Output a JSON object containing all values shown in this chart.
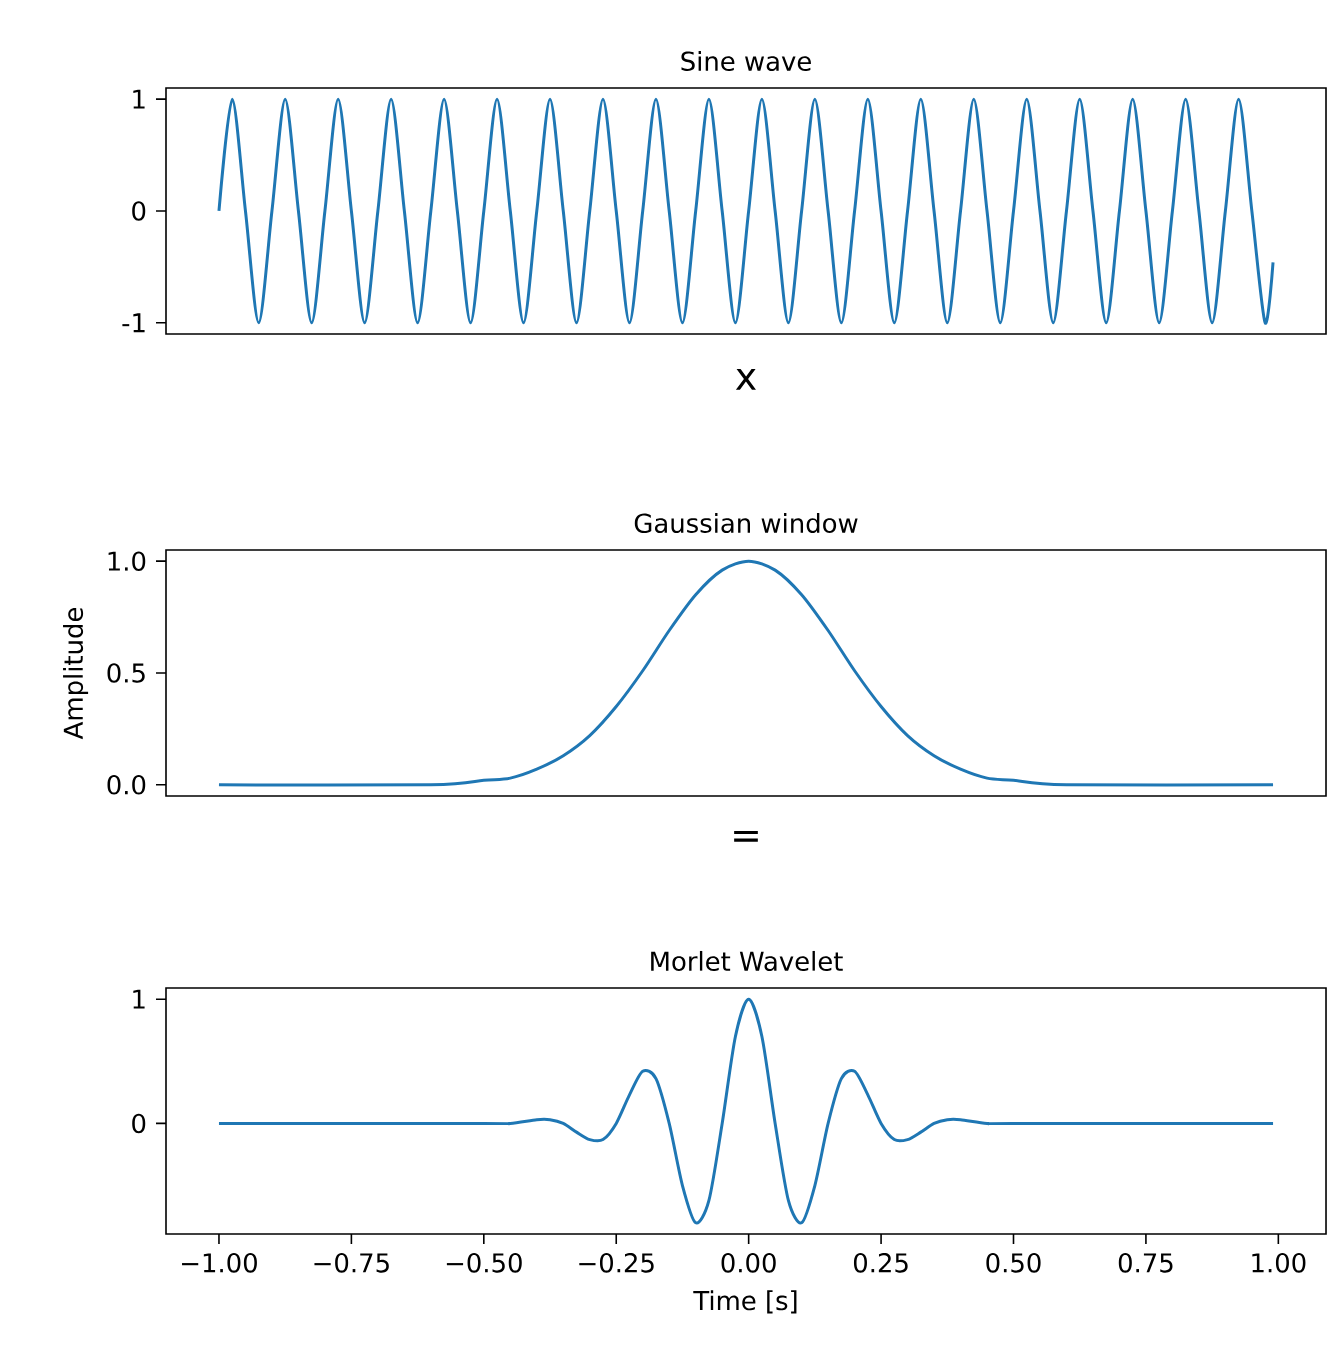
{
  "chart_data": [
    {
      "type": "line",
      "title": "Sine wave",
      "xlabel": "x",
      "tick_labels": "y",
      "xlim": [
        -1.1,
        1.09
      ],
      "ylim": [
        -1.1,
        1.1
      ],
      "yticks": [
        -1,
        0,
        1
      ],
      "series": [
        {
          "color": "#1f77b4",
          "x": [
            -1,
            -0.975,
            -0.95,
            -0.925,
            -0.9,
            -0.875,
            -0.85,
            -0.825,
            -0.8,
            -0.775,
            -0.75,
            -0.725,
            -0.7,
            -0.675,
            -0.65,
            -0.625,
            -0.6,
            -0.575,
            -0.55,
            -0.525,
            -0.5,
            -0.475,
            -0.45,
            -0.425,
            -0.4,
            -0.375,
            -0.35,
            -0.325,
            -0.3,
            -0.275,
            -0.25,
            -0.225,
            -0.2,
            -0.175,
            -0.15,
            -0.125,
            -0.1,
            -0.075,
            -0.05,
            -0.025,
            0,
            0.025,
            0.05,
            0.075,
            0.1,
            0.125,
            0.15,
            0.175,
            0.2,
            0.225,
            0.25,
            0.275,
            0.3,
            0.325,
            0.35,
            0.375,
            0.4,
            0.425,
            0.45,
            0.475,
            0.5,
            0.525,
            0.55,
            0.575,
            0.6,
            0.625,
            0.65,
            0.675,
            0.7,
            0.725,
            0.75,
            0.775,
            0.8,
            0.825,
            0.85,
            0.875,
            0.9,
            0.925,
            0.95,
            0.975,
            0.99
          ],
          "values": [
            0,
            1,
            0,
            -1,
            0,
            1,
            0,
            -1,
            0,
            1,
            0,
            -1,
            0,
            1,
            0,
            -1,
            0,
            1,
            0,
            -1,
            0,
            1,
            0,
            -1,
            0,
            1,
            0,
            -1,
            0,
            1,
            0,
            -1,
            0,
            1,
            0,
            -1,
            0,
            1,
            0,
            -1,
            0,
            1,
            0,
            -1,
            0,
            1,
            0,
            -1,
            0,
            1,
            0,
            -1,
            0,
            1,
            0,
            -1,
            0,
            1,
            0,
            -1,
            0,
            1,
            0,
            -1,
            0,
            1,
            0,
            -1,
            0,
            1,
            0,
            -1,
            0,
            1,
            0,
            -1,
            0,
            1,
            0,
            -1,
            -0.46
          ]
        }
      ]
    },
    {
      "type": "line",
      "title": "Gaussian window",
      "xlabel": "=",
      "ylabel": "Amplitude",
      "tick_labels": "y",
      "xlim": [
        -1.1,
        1.09
      ],
      "ylim": [
        -0.05,
        1.05
      ],
      "yticks": [
        {
          "value": 0,
          "label": "0.0"
        },
        {
          "value": 0.5,
          "label": "0.5"
        },
        {
          "value": 1,
          "label": "1.0"
        }
      ],
      "series": [
        {
          "color": "#1f77b4",
          "x": [
            -1,
            -0.6,
            -0.5,
            -0.45,
            -0.4,
            -0.35,
            -0.3,
            -0.25,
            -0.2,
            -0.15,
            -0.1,
            -0.05,
            0,
            0.05,
            0.1,
            0.15,
            0.2,
            0.25,
            0.3,
            0.35,
            0.4,
            0.45,
            0.5,
            0.6,
            0.99
          ],
          "values": [
            0,
            0,
            0.02,
            0.03,
            0.07,
            0.13,
            0.22,
            0.35,
            0.51,
            0.69,
            0.85,
            0.96,
            1,
            0.96,
            0.85,
            0.69,
            0.51,
            0.35,
            0.22,
            0.13,
            0.07,
            0.03,
            0.02,
            0,
            0
          ]
        }
      ]
    },
    {
      "type": "line",
      "title": "Morlet Wavelet",
      "xlabel": "Time [s]",
      "xlim": [
        -1.1,
        1.09
      ],
      "ylim": [
        -0.89,
        1.09
      ],
      "yticks": [
        0,
        1
      ],
      "xticks": [
        {
          "value": -1,
          "label": "−1.00"
        },
        {
          "value": -0.75,
          "label": "−0.75"
        },
        {
          "value": -0.5,
          "label": "−0.50"
        },
        {
          "value": -0.25,
          "label": "−0.25"
        },
        {
          "value": 0,
          "label": "0.00"
        },
        {
          "value": 0.25,
          "label": "0.25"
        },
        {
          "value": 0.5,
          "label": "0.50"
        },
        {
          "value": 0.75,
          "label": "0.75"
        },
        {
          "value": 1,
          "label": "1.00"
        }
      ],
      "series": [
        {
          "color": "#1f77b4",
          "x": [
            -1,
            -0.5,
            -0.45,
            -0.4,
            -0.375,
            -0.35,
            -0.325,
            -0.3,
            -0.275,
            -0.25,
            -0.225,
            -0.2,
            -0.175,
            -0.15,
            -0.125,
            -0.1,
            -0.075,
            -0.05,
            -0.025,
            0,
            0.025,
            0.05,
            0.075,
            0.1,
            0.125,
            0.15,
            0.175,
            0.2,
            0.225,
            0.25,
            0.275,
            0.3,
            0.325,
            0.35,
            0.375,
            0.4,
            0.45,
            0.5,
            0.99
          ],
          "values": [
            0,
            0,
            0,
            0.03,
            0.03,
            0,
            -0.07,
            -0.13,
            -0.13,
            0,
            0.23,
            0.42,
            0.36,
            0,
            -0.5,
            -0.8,
            -0.62,
            0,
            0.7,
            1,
            0.7,
            0,
            -0.62,
            -0.8,
            -0.5,
            0,
            0.36,
            0.42,
            0.23,
            0,
            -0.13,
            -0.13,
            -0.07,
            0,
            0.03,
            0.03,
            0,
            0,
            0
          ]
        }
      ]
    }
  ]
}
